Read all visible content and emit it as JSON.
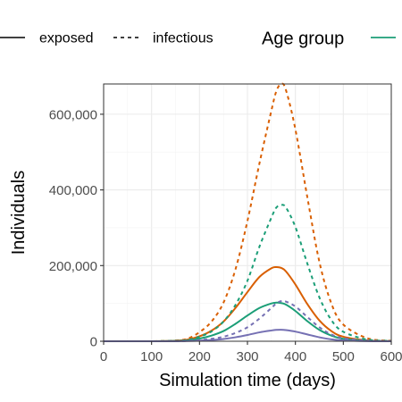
{
  "chart_data": {
    "type": "line",
    "title": "",
    "xlabel": "Simulation time (days)",
    "ylabel": "Individuals",
    "xlim": [
      0,
      600
    ],
    "ylim": [
      0,
      680000
    ],
    "x_ticks": [
      0,
      100,
      200,
      300,
      400,
      500,
      600
    ],
    "x_tick_labels": [
      "0",
      "100",
      "200",
      "300",
      "400",
      "500",
      "600"
    ],
    "y_ticks": [
      0,
      200000,
      400000,
      600000
    ],
    "y_tick_labels": [
      "0",
      "200,000",
      "400,000",
      "600,000"
    ],
    "grid": true,
    "legend": {
      "placement": "top",
      "linetype_entries": [
        {
          "label": "exposed",
          "dash": "solid"
        },
        {
          "label": "infectious",
          "dash": "dashed"
        }
      ],
      "color_title": "Age group"
    },
    "x": [
      0,
      50,
      100,
      150,
      175,
      200,
      225,
      250,
      275,
      300,
      325,
      350,
      360,
      370,
      380,
      400,
      425,
      450,
      475,
      500,
      550,
      600
    ],
    "series": [
      {
        "group": "orange",
        "state": "infectious",
        "color": "#d95f02",
        "dash": "dashed",
        "values": [
          0,
          0,
          0,
          2000,
          7000,
          24000,
          52000,
          102000,
          190000,
          318000,
          470000,
          610000,
          660000,
          680000,
          665000,
          560000,
          380000,
          210000,
          100000,
          44000,
          8000,
          1500
        ]
      },
      {
        "group": "orange",
        "state": "exposed",
        "color": "#d95f02",
        "dash": "solid",
        "values": [
          0,
          0,
          0,
          1500,
          4500,
          13000,
          28000,
          52000,
          88000,
          130000,
          170000,
          193000,
          196000,
          194000,
          185000,
          150000,
          98000,
          55000,
          27000,
          12000,
          2500,
          500
        ]
      },
      {
        "group": "green",
        "state": "infectious",
        "color": "#1b9e77",
        "dash": "dashed",
        "values": [
          0,
          0,
          0,
          1000,
          3500,
          12000,
          26000,
          52000,
          96000,
          160000,
          250000,
          327000,
          353000,
          360000,
          354000,
          302000,
          205000,
          116000,
          56000,
          25000,
          4500,
          900
        ]
      },
      {
        "group": "green",
        "state": "exposed",
        "color": "#1b9e77",
        "dash": "solid",
        "values": [
          0,
          0,
          0,
          800,
          2500,
          7000,
          15000,
          27000,
          46000,
          68000,
          88000,
          100000,
          102000,
          101000,
          97000,
          80000,
          53000,
          30000,
          15000,
          6500,
          1400,
          300
        ]
      },
      {
        "group": "purple",
        "state": "infectious",
        "color": "#7570b3",
        "dash": "dashed",
        "values": [
          0,
          0,
          0,
          300,
          1000,
          3000,
          6500,
          12000,
          22000,
          37000,
          60000,
          88000,
          100000,
          106000,
          105000,
          92000,
          64000,
          37000,
          18000,
          8000,
          1500,
          300
        ]
      },
      {
        "group": "purple",
        "state": "exposed",
        "color": "#7570b3",
        "dash": "solid",
        "values": [
          0,
          0,
          0,
          150,
          500,
          1500,
          3200,
          6000,
          10500,
          16500,
          23500,
          28500,
          30000,
          30500,
          29500,
          25500,
          18000,
          10500,
          5000,
          2200,
          400,
          80
        ]
      }
    ]
  }
}
